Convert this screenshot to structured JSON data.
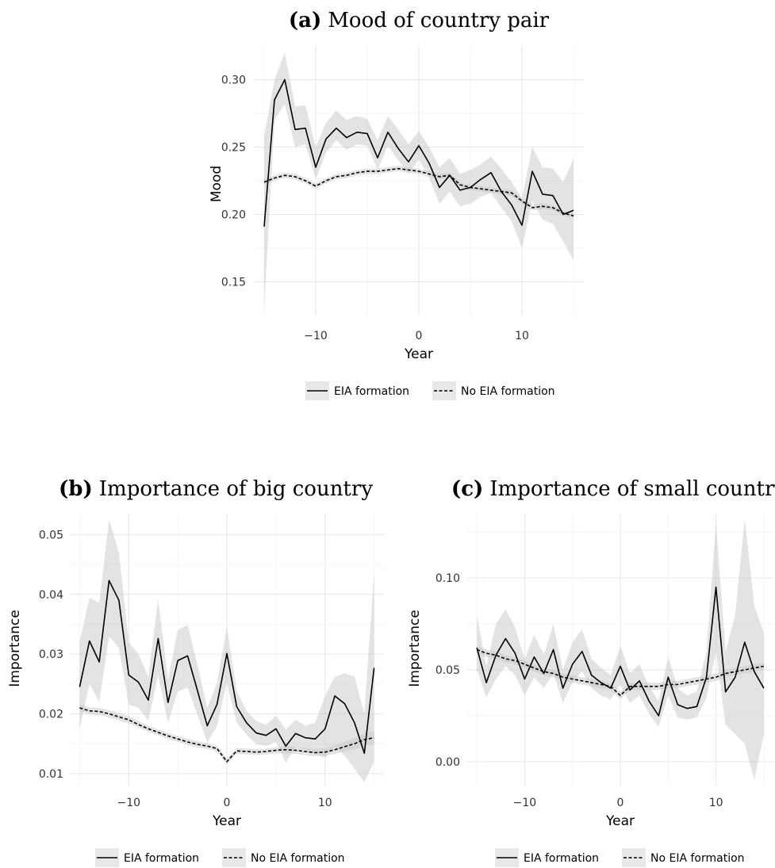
{
  "chart_data": [
    {
      "id": "a",
      "type": "line",
      "title_prefix": "(a)",
      "title": "Mood of country pair",
      "xlabel": "Year",
      "ylabel": "Mood",
      "xlim": [
        -16,
        16
      ],
      "ylim": [
        0.125,
        0.325
      ],
      "xticks": [
        -10,
        0,
        10
      ],
      "yticks": [
        0.15,
        0.2,
        0.25,
        0.3
      ],
      "xtick_labels": [
        "−10",
        "0",
        "10"
      ],
      "ytick_labels": [
        "0.15",
        "0.20",
        "0.25",
        "0.30"
      ],
      "grid": true,
      "legend_position": "bottom",
      "x": [
        -15,
        -14,
        -13,
        -12,
        -11,
        -10,
        -9,
        -8,
        -7,
        -6,
        -5,
        -4,
        -3,
        -2,
        -1,
        0,
        1,
        2,
        3,
        4,
        5,
        6,
        7,
        8,
        9,
        10,
        11,
        12,
        13,
        14,
        15
      ],
      "series": [
        {
          "name": "EIA formation",
          "style": "solid",
          "values": [
            0.191,
            0.285,
            0.3,
            0.263,
            0.264,
            0.235,
            0.256,
            0.264,
            0.257,
            0.261,
            0.26,
            0.242,
            0.261,
            0.249,
            0.239,
            0.251,
            0.238,
            0.22,
            0.229,
            0.218,
            0.22,
            0.226,
            0.231,
            0.217,
            0.207,
            0.192,
            0.232,
            0.215,
            0.214,
            0.2,
            0.203
          ],
          "lower": [
            0.13,
            0.27,
            0.282,
            0.25,
            0.252,
            0.226,
            0.246,
            0.255,
            0.248,
            0.252,
            0.251,
            0.233,
            0.251,
            0.24,
            0.23,
            0.241,
            0.227,
            0.208,
            0.217,
            0.206,
            0.208,
            0.213,
            0.216,
            0.205,
            0.195,
            0.175,
            0.21,
            0.196,
            0.193,
            0.18,
            0.166
          ],
          "upper": [
            0.258,
            0.3,
            0.32,
            0.28,
            0.281,
            0.25,
            0.268,
            0.277,
            0.27,
            0.273,
            0.271,
            0.255,
            0.273,
            0.263,
            0.252,
            0.262,
            0.25,
            0.235,
            0.242,
            0.23,
            0.233,
            0.237,
            0.243,
            0.234,
            0.224,
            0.212,
            0.25,
            0.235,
            0.234,
            0.224,
            0.241
          ]
        },
        {
          "name": "No EIA formation",
          "style": "dashed",
          "values": [
            0.224,
            0.227,
            0.229,
            0.228,
            0.225,
            0.221,
            0.225,
            0.228,
            0.229,
            0.231,
            0.232,
            0.232,
            0.233,
            0.234,
            0.233,
            0.232,
            0.23,
            0.228,
            0.229,
            0.222,
            0.22,
            0.219,
            0.218,
            0.217,
            0.216,
            0.21,
            0.205,
            0.206,
            0.205,
            0.201,
            0.199
          ],
          "lower": [
            0.222,
            0.225,
            0.227,
            0.226,
            0.223,
            0.219,
            0.223,
            0.226,
            0.227,
            0.229,
            0.23,
            0.23,
            0.231,
            0.232,
            0.231,
            0.23,
            0.228,
            0.226,
            0.227,
            0.22,
            0.218,
            0.217,
            0.216,
            0.215,
            0.214,
            0.208,
            0.203,
            0.204,
            0.203,
            0.199,
            0.197
          ],
          "upper": [
            0.226,
            0.229,
            0.231,
            0.23,
            0.227,
            0.223,
            0.227,
            0.23,
            0.231,
            0.233,
            0.234,
            0.234,
            0.235,
            0.236,
            0.235,
            0.234,
            0.232,
            0.23,
            0.231,
            0.224,
            0.222,
            0.221,
            0.22,
            0.219,
            0.218,
            0.212,
            0.207,
            0.208,
            0.207,
            0.203,
            0.201
          ]
        }
      ]
    },
    {
      "id": "b",
      "type": "line",
      "title_prefix": "(b)",
      "title": "Importance of big country",
      "xlabel": "Year",
      "ylabel": "Importance",
      "xlim": [
        -16,
        16
      ],
      "ylim": [
        0.008,
        0.0535
      ],
      "xticks": [
        -10,
        0,
        10
      ],
      "yticks": [
        0.01,
        0.02,
        0.03,
        0.04,
        0.05
      ],
      "xtick_labels": [
        "−10",
        "0",
        "10"
      ],
      "ytick_labels": [
        "0.01",
        "0.02",
        "0.03",
        "0.04",
        "0.05"
      ],
      "grid": true,
      "legend_position": "bottom",
      "x": [
        -15,
        -14,
        -13,
        -12,
        -11,
        -10,
        -9,
        -8,
        -7,
        -6,
        -5,
        -4,
        -3,
        -2,
        -1,
        0,
        1,
        2,
        3,
        4,
        5,
        6,
        7,
        8,
        9,
        10,
        11,
        12,
        13,
        14,
        15
      ],
      "series": [
        {
          "name": "EIA formation",
          "style": "solid",
          "values": [
            0.0245,
            0.0322,
            0.0287,
            0.0423,
            0.039,
            0.0265,
            0.0253,
            0.0223,
            0.0326,
            0.0219,
            0.0289,
            0.0297,
            0.0239,
            0.018,
            0.0216,
            0.0301,
            0.0212,
            0.0185,
            0.0168,
            0.0164,
            0.0175,
            0.0146,
            0.0167,
            0.016,
            0.0158,
            0.0175,
            0.023,
            0.0217,
            0.0185,
            0.0134,
            0.0277
          ],
          "lower": [
            0.0175,
            0.025,
            0.022,
            0.033,
            0.031,
            0.0215,
            0.021,
            0.0188,
            0.0265,
            0.0185,
            0.0237,
            0.0244,
            0.0199,
            0.0152,
            0.018,
            0.0252,
            0.0185,
            0.0165,
            0.0149,
            0.0146,
            0.0153,
            0.0118,
            0.0145,
            0.014,
            0.0133,
            0.0126,
            0.0145,
            0.013,
            0.0108,
            0.0086,
            0.012
          ],
          "upper": [
            0.032,
            0.0395,
            0.0385,
            0.0525,
            0.047,
            0.032,
            0.03,
            0.0262,
            0.0392,
            0.0258,
            0.034,
            0.0349,
            0.0282,
            0.021,
            0.0252,
            0.0345,
            0.0238,
            0.0205,
            0.0188,
            0.0182,
            0.0197,
            0.0174,
            0.019,
            0.018,
            0.0185,
            0.023,
            0.0262,
            0.0268,
            0.0262,
            0.02,
            0.0435
          ]
        },
        {
          "name": "No EIA formation",
          "style": "dashed",
          "values": [
            0.021,
            0.0205,
            0.0204,
            0.02,
            0.0195,
            0.019,
            0.0182,
            0.0175,
            0.0169,
            0.0163,
            0.0158,
            0.0153,
            0.0149,
            0.0146,
            0.0142,
            0.012,
            0.0138,
            0.0137,
            0.0136,
            0.0137,
            0.0139,
            0.014,
            0.0139,
            0.0137,
            0.0135,
            0.0136,
            0.014,
            0.0145,
            0.015,
            0.0157,
            0.016
          ],
          "lower": [
            0.0204,
            0.0199,
            0.0198,
            0.0194,
            0.0189,
            0.0184,
            0.0177,
            0.017,
            0.0164,
            0.0158,
            0.0153,
            0.0148,
            0.0144,
            0.0141,
            0.0137,
            0.0115,
            0.0133,
            0.0132,
            0.0131,
            0.0132,
            0.0134,
            0.0134,
            0.0133,
            0.0131,
            0.0129,
            0.013,
            0.0133,
            0.0137,
            0.0141,
            0.0147,
            0.0149
          ],
          "upper": [
            0.0216,
            0.0211,
            0.021,
            0.0206,
            0.0201,
            0.0196,
            0.0188,
            0.018,
            0.0174,
            0.0168,
            0.0163,
            0.0158,
            0.0154,
            0.0151,
            0.0147,
            0.0125,
            0.0143,
            0.0142,
            0.0141,
            0.0142,
            0.0144,
            0.0146,
            0.0145,
            0.0143,
            0.0141,
            0.0142,
            0.0147,
            0.0153,
            0.0159,
            0.0167,
            0.0171
          ]
        }
      ]
    },
    {
      "id": "c",
      "type": "line",
      "title_prefix": "(c)",
      "title": "Importance of small country",
      "xlabel": "Year",
      "ylabel": "Importance",
      "xlim": [
        -16,
        16
      ],
      "ylim": [
        -0.013,
        0.135
      ],
      "xticks": [
        -10,
        0,
        10
      ],
      "yticks": [
        0.0,
        0.05,
        0.1
      ],
      "xtick_labels": [
        "−10",
        "0",
        "10"
      ],
      "ytick_labels": [
        "0.00",
        "0.05",
        "0.10"
      ],
      "grid": true,
      "legend_position": "bottom",
      "x": [
        -15,
        -14,
        -13,
        -12,
        -11,
        -10,
        -9,
        -8,
        -7,
        -6,
        -5,
        -4,
        -3,
        -2,
        -1,
        0,
        1,
        2,
        3,
        4,
        5,
        6,
        7,
        8,
        9,
        10,
        11,
        12,
        13,
        14,
        15
      ],
      "series": [
        {
          "name": "EIA formation",
          "style": "solid",
          "values": [
            0.062,
            0.043,
            0.058,
            0.067,
            0.059,
            0.045,
            0.057,
            0.048,
            0.061,
            0.04,
            0.053,
            0.06,
            0.047,
            0.043,
            0.04,
            0.052,
            0.039,
            0.044,
            0.033,
            0.025,
            0.046,
            0.031,
            0.029,
            0.03,
            0.046,
            0.095,
            0.038,
            0.046,
            0.065,
            0.049,
            0.04
          ],
          "lower": [
            0.05,
            0.035,
            0.045,
            0.052,
            0.047,
            0.036,
            0.046,
            0.04,
            0.048,
            0.032,
            0.043,
            0.049,
            0.04,
            0.036,
            0.034,
            0.042,
            0.032,
            0.036,
            0.026,
            0.019,
            0.036,
            0.024,
            0.023,
            0.024,
            0.035,
            0.06,
            0.02,
            0.015,
            0.01,
            -0.01,
            0.015
          ],
          "upper": [
            0.08,
            0.052,
            0.075,
            0.083,
            0.073,
            0.056,
            0.069,
            0.058,
            0.075,
            0.05,
            0.065,
            0.072,
            0.056,
            0.051,
            0.047,
            0.063,
            0.048,
            0.053,
            0.041,
            0.033,
            0.057,
            0.04,
            0.036,
            0.038,
            0.06,
            0.13,
            0.06,
            0.08,
            0.132,
            0.085,
            0.07
          ]
        },
        {
          "name": "No EIA formation",
          "style": "dashed",
          "values": [
            0.061,
            0.059,
            0.058,
            0.056,
            0.055,
            0.053,
            0.051,
            0.049,
            0.048,
            0.046,
            0.045,
            0.044,
            0.043,
            0.042,
            0.041,
            0.036,
            0.041,
            0.041,
            0.041,
            0.041,
            0.042,
            0.042,
            0.043,
            0.044,
            0.045,
            0.046,
            0.048,
            0.049,
            0.05,
            0.051,
            0.052
          ],
          "lower": [
            0.059,
            0.057,
            0.056,
            0.054,
            0.053,
            0.051,
            0.049,
            0.047,
            0.046,
            0.044,
            0.043,
            0.042,
            0.041,
            0.04,
            0.039,
            0.034,
            0.039,
            0.039,
            0.039,
            0.039,
            0.04,
            0.04,
            0.041,
            0.042,
            0.043,
            0.044,
            0.046,
            0.047,
            0.048,
            0.049,
            0.05
          ],
          "upper": [
            0.063,
            0.061,
            0.06,
            0.058,
            0.057,
            0.055,
            0.053,
            0.051,
            0.05,
            0.048,
            0.047,
            0.046,
            0.045,
            0.044,
            0.043,
            0.038,
            0.043,
            0.043,
            0.043,
            0.043,
            0.044,
            0.044,
            0.045,
            0.046,
            0.047,
            0.048,
            0.05,
            0.051,
            0.052,
            0.053,
            0.054
          ]
        }
      ]
    }
  ]
}
